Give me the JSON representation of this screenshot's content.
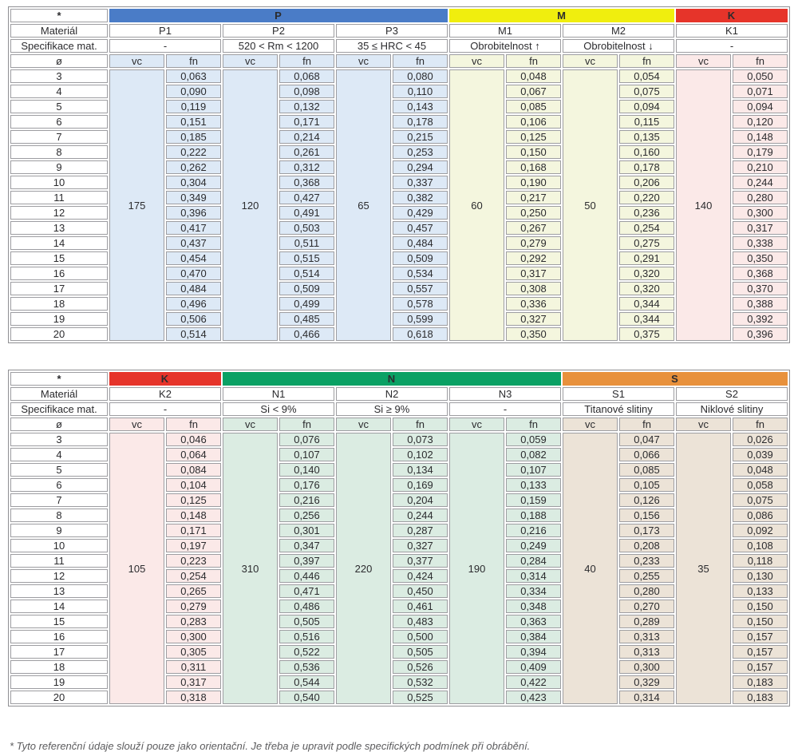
{
  "labels": {
    "asterisk": "*",
    "material": "Materiál",
    "spec": "Specifikace mat.",
    "diameter": "ø",
    "vc": "vc",
    "fn": "fn"
  },
  "colors": {
    "header_dark": "#434347",
    "band_P": "#4a7cc7",
    "band_M": "#f0ee0e",
    "band_K": "#e6342a",
    "band_N": "#0aa164",
    "band_S": "#e8913c",
    "tint_P": "#dde9f6",
    "tint_M": "#f4f6de",
    "tint_K": "#fbe9e8",
    "tint_N": "#dbece2",
    "tint_S": "#ece3d7"
  },
  "diameters": [
    "3",
    "4",
    "5",
    "6",
    "7",
    "8",
    "9",
    "10",
    "11",
    "12",
    "13",
    "14",
    "15",
    "16",
    "17",
    "18",
    "19",
    "20"
  ],
  "tables": [
    {
      "groups": [
        {
          "name": "P",
          "band_color": "#4a7cc7",
          "tint": "#dde9f6",
          "columns": [
            {
              "material": "P1",
              "spec": "-",
              "vc": "175",
              "fn": [
                "0,063",
                "0,090",
                "0,119",
                "0,151",
                "0,185",
                "0,222",
                "0,262",
                "0,304",
                "0,349",
                "0,396",
                "0,417",
                "0,437",
                "0,454",
                "0,470",
                "0,484",
                "0,496",
                "0,506",
                "0,514"
              ]
            },
            {
              "material": "P2",
              "spec": "520 < Rm < 1200",
              "vc": "120",
              "fn": [
                "0,068",
                "0,098",
                "0,132",
                "0,171",
                "0,214",
                "0,261",
                "0,312",
                "0,368",
                "0,427",
                "0,491",
                "0,503",
                "0,511",
                "0,515",
                "0,514",
                "0,509",
                "0,499",
                "0,485",
                "0,466"
              ]
            },
            {
              "material": "P3",
              "spec": "35 ≤ HRC < 45",
              "vc": "65",
              "fn": [
                "0,080",
                "0,110",
                "0,143",
                "0,178",
                "0,215",
                "0,253",
                "0,294",
                "0,337",
                "0,382",
                "0,429",
                "0,457",
                "0,484",
                "0,509",
                "0,534",
                "0,557",
                "0,578",
                "0,599",
                "0,618"
              ]
            }
          ]
        },
        {
          "name": "M",
          "band_color": "#f0ee0e",
          "tint": "#f4f6de",
          "columns": [
            {
              "material": "M1",
              "spec": "Obrobitelnost ↑",
              "vc": "60",
              "fn": [
                "0,048",
                "0,067",
                "0,085",
                "0,106",
                "0,125",
                "0,150",
                "0,168",
                "0,190",
                "0,217",
                "0,250",
                "0,267",
                "0,279",
                "0,292",
                "0,317",
                "0,308",
                "0,336",
                "0,327",
                "0,350"
              ]
            },
            {
              "material": "M2",
              "spec": "Obrobitelnost ↓",
              "vc": "50",
              "fn": [
                "0,054",
                "0,075",
                "0,094",
                "0,115",
                "0,135",
                "0,160",
                "0,178",
                "0,206",
                "0,220",
                "0,236",
                "0,254",
                "0,275",
                "0,291",
                "0,320",
                "0,320",
                "0,344",
                "0,344",
                "0,375"
              ]
            }
          ]
        },
        {
          "name": "K",
          "band_color": "#e6342a",
          "tint": "#fbe9e8",
          "columns": [
            {
              "material": "K1",
              "spec": "-",
              "vc": "140",
              "fn": [
                "0,050",
                "0,071",
                "0,094",
                "0,120",
                "0,148",
                "0,179",
                "0,210",
                "0,244",
                "0,280",
                "0,300",
                "0,317",
                "0,338",
                "0,350",
                "0,368",
                "0,370",
                "0,388",
                "0,392",
                "0,396"
              ]
            }
          ]
        }
      ]
    },
    {
      "groups": [
        {
          "name": "K",
          "band_color": "#e6342a",
          "tint": "#fbe9e8",
          "columns": [
            {
              "material": "K2",
              "spec": "-",
              "vc": "105",
              "fn": [
                "0,046",
                "0,064",
                "0,084",
                "0,104",
                "0,125",
                "0,148",
                "0,171",
                "0,197",
                "0,223",
                "0,254",
                "0,265",
                "0,279",
                "0,283",
                "0,300",
                "0,305",
                "0,311",
                "0,317",
                "0,318"
              ]
            }
          ]
        },
        {
          "name": "N",
          "band_color": "#0aa164",
          "tint": "#dbece2",
          "columns": [
            {
              "material": "N1",
              "spec": "Si < 9%",
              "vc": "310",
              "fn": [
                "0,076",
                "0,107",
                "0,140",
                "0,176",
                "0,216",
                "0,256",
                "0,301",
                "0,347",
                "0,397",
                "0,446",
                "0,471",
                "0,486",
                "0,505",
                "0,516",
                "0,522",
                "0,536",
                "0,544",
                "0,540"
              ]
            },
            {
              "material": "N2",
              "spec": "Si ≥ 9%",
              "vc": "220",
              "fn": [
                "0,073",
                "0,102",
                "0,134",
                "0,169",
                "0,204",
                "0,244",
                "0,287",
                "0,327",
                "0,377",
                "0,424",
                "0,450",
                "0,461",
                "0,483",
                "0,500",
                "0,505",
                "0,526",
                "0,532",
                "0,525"
              ]
            },
            {
              "material": "N3",
              "spec": "-",
              "vc": "190",
              "fn": [
                "0,059",
                "0,082",
                "0,107",
                "0,133",
                "0,159",
                "0,188",
                "0,216",
                "0,249",
                "0,284",
                "0,314",
                "0,334",
                "0,348",
                "0,363",
                "0,384",
                "0,394",
                "0,409",
                "0,422",
                "0,423"
              ]
            }
          ]
        },
        {
          "name": "S",
          "band_color": "#e8913c",
          "tint": "#ece3d7",
          "columns": [
            {
              "material": "S1",
              "spec": "Titanové slitiny",
              "vc": "40",
              "fn": [
                "0,047",
                "0,066",
                "0,085",
                "0,105",
                "0,126",
                "0,156",
                "0,173",
                "0,208",
                "0,233",
                "0,255",
                "0,280",
                "0,270",
                "0,289",
                "0,313",
                "0,313",
                "0,300",
                "0,329",
                "0,314"
              ]
            },
            {
              "material": "S2",
              "spec": "Niklové slitiny",
              "vc": "35",
              "fn": [
                "0,026",
                "0,039",
                "0,048",
                "0,058",
                "0,075",
                "0,086",
                "0,092",
                "0,108",
                "0,118",
                "0,130",
                "0,133",
                "0,150",
                "0,150",
                "0,157",
                "0,157",
                "0,157",
                "0,183",
                "0,183"
              ]
            }
          ]
        }
      ]
    }
  ],
  "footnote": "* Tyto referenční údaje slouží pouze jako orientační. Je třeba je upravit podle specifických podmínek při obrábění."
}
